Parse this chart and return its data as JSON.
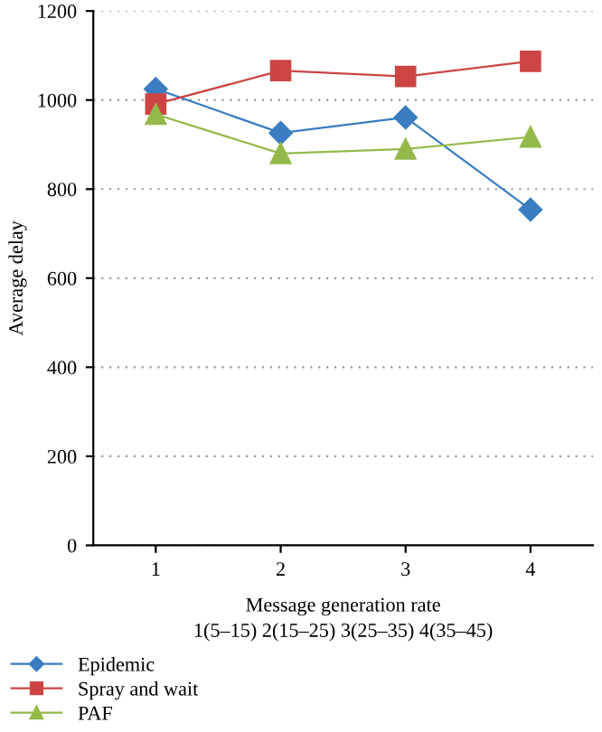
{
  "chart_data": {
    "type": "line",
    "xlabel": "Message generation rate",
    "ylabel": "Average delay",
    "annotations": [
      "1(5–15) 2(15–25) 3(25–35) 4(35–45)"
    ],
    "x": [
      1,
      2,
      3,
      4
    ],
    "xlim": [
      0.5,
      4.5
    ],
    "xticks": [
      1,
      2,
      3,
      4
    ],
    "ylim": [
      0,
      1200
    ],
    "yticks": [
      0,
      200,
      400,
      600,
      800,
      1000,
      1200
    ],
    "grid": "y",
    "legend": "bottom",
    "series": [
      {
        "name": "Epidemic",
        "color": "#3a7dc0",
        "marker": "diamond",
        "values": [
          1025,
          926,
          961,
          754
        ]
      },
      {
        "name": "Spray and wait",
        "color": "#cc4444",
        "marker": "square",
        "values": [
          991,
          1066,
          1053,
          1087
        ]
      },
      {
        "name": "PAF",
        "color": "#94b94a",
        "marker": "triangle",
        "values": [
          968,
          880,
          890,
          917
        ]
      }
    ]
  }
}
